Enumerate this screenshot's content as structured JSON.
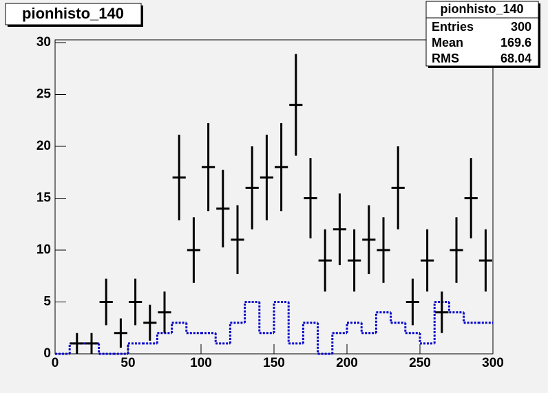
{
  "chart_data": {
    "type": "histogram",
    "title": "pionhisto_140",
    "bins": [
      0,
      10,
      20,
      30,
      40,
      50,
      60,
      70,
      80,
      90,
      100,
      110,
      120,
      130,
      140,
      150,
      160,
      170,
      180,
      190,
      200,
      210,
      220,
      230,
      240,
      250,
      260,
      270,
      280,
      290,
      300
    ],
    "values": [
      0,
      1,
      1,
      5,
      2,
      5,
      3,
      4,
      17,
      10,
      18,
      14,
      11,
      16,
      17,
      18,
      24,
      15,
      9,
      12,
      9,
      11,
      10,
      16,
      5,
      9,
      4,
      10,
      15,
      9
    ],
    "errors": [
      0,
      1,
      1,
      2.24,
      1.41,
      2.24,
      1.73,
      2,
      4.12,
      3.16,
      4.24,
      3.74,
      3.32,
      4,
      4.12,
      4.24,
      4.9,
      3.87,
      3,
      3.46,
      3,
      3.32,
      3.16,
      4,
      2.24,
      3,
      2,
      3.16,
      3.87,
      3
    ],
    "color": "#000000",
    "overlay_values": [
      0,
      1,
      1,
      0,
      0,
      1,
      1,
      2,
      3,
      2,
      2,
      1,
      3,
      5,
      2,
      5,
      1,
      3,
      0,
      2,
      3,
      2,
      4,
      3,
      2,
      1,
      5,
      4,
      3,
      3
    ],
    "overlay_color": "#0000cc",
    "xlim": [
      0,
      300
    ],
    "xticks": [
      0,
      50,
      100,
      150,
      200,
      250,
      300
    ],
    "ylim": [
      0,
      30
    ],
    "yticks": [
      0,
      5,
      10,
      15,
      20,
      25,
      30
    ],
    "stats": {
      "title": "pionhisto_140",
      "rows": [
        [
          "Entries",
          300
        ],
        [
          "Mean",
          169.6
        ],
        [
          "RMS",
          68.04
        ]
      ]
    }
  }
}
